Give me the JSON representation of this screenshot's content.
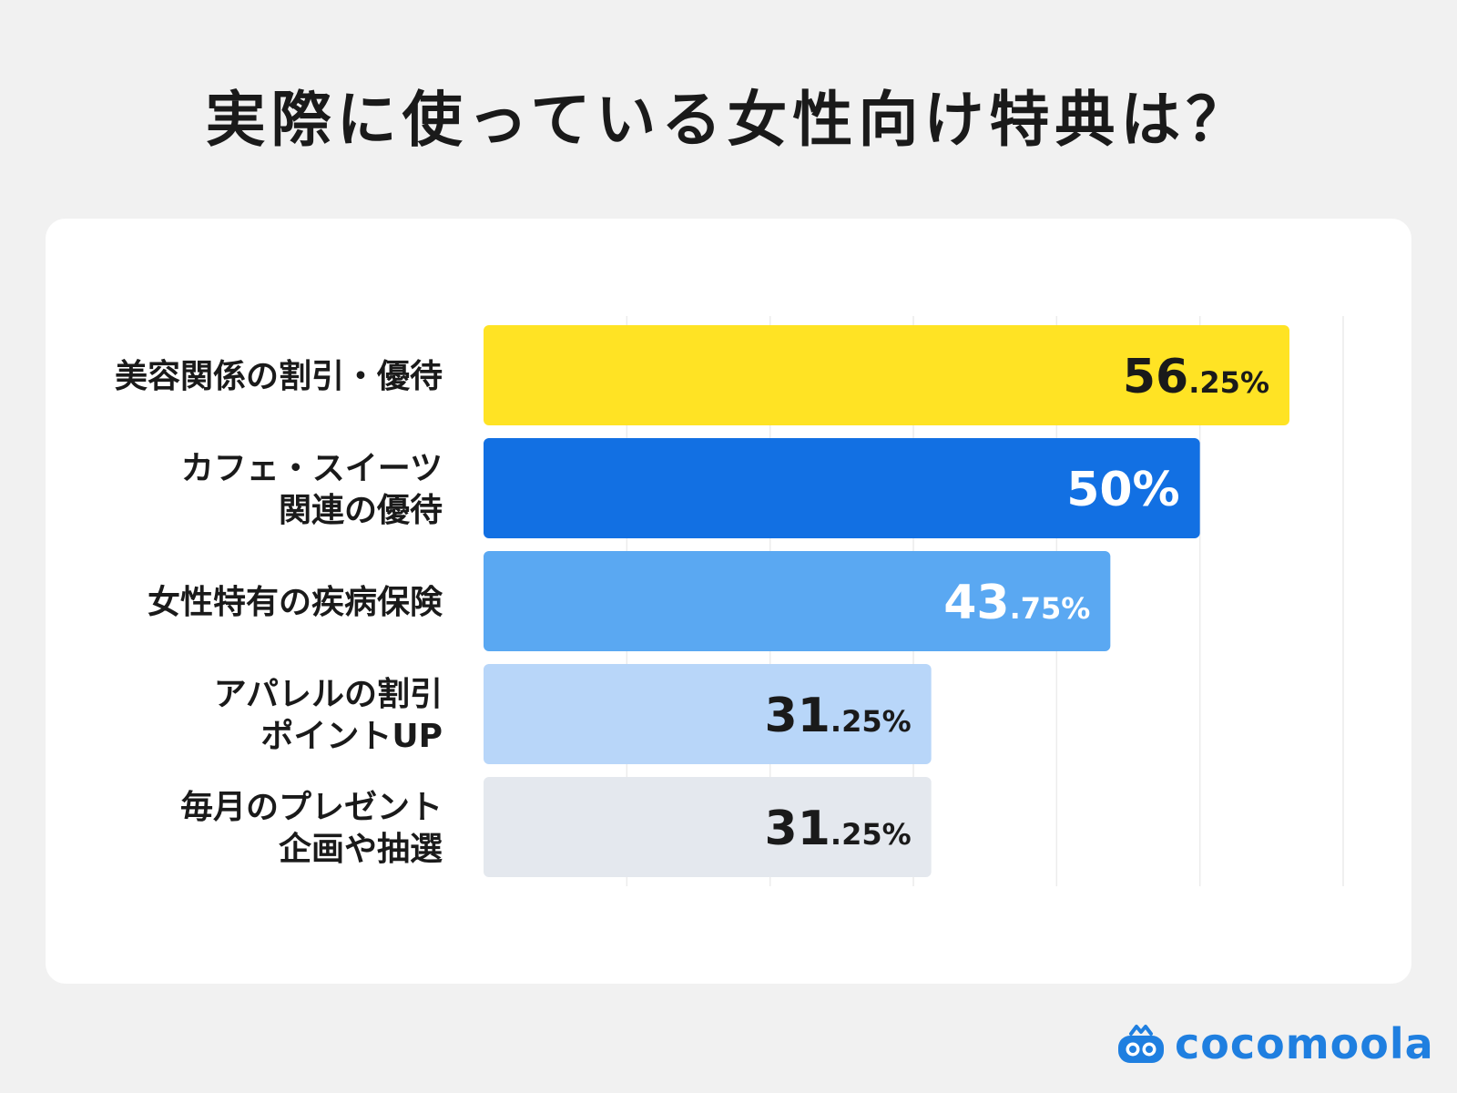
{
  "title": "実際に使っている女性向け特典は？",
  "logo": {
    "text": "cocomoola",
    "icon": "cocomoola-logo-icon"
  },
  "chart_data": {
    "type": "bar",
    "orientation": "horizontal",
    "title": "実際に使っている女性向け特典は？",
    "categories": [
      [
        "美容関係の割引・優待"
      ],
      [
        "カフェ・スイーツ",
        "関連の優待"
      ],
      [
        "女性特有の疾病保険"
      ],
      [
        "アパレルの割引",
        "ポイントUP"
      ],
      [
        "毎月のプレゼント",
        "企画や抽選"
      ]
    ],
    "values": [
      56.25,
      50,
      43.75,
      31.25,
      31.25
    ],
    "value_labels": [
      {
        "int": "56",
        "dec": ".25%"
      },
      {
        "int": "50%",
        "dec": ""
      },
      {
        "int": "43",
        "dec": ".75%"
      },
      {
        "int": "31",
        "dec": ".25%"
      },
      {
        "int": "31",
        "dec": ".25%"
      }
    ],
    "colors": [
      "#ffe324",
      "#1270e3",
      "#5aa8f2",
      "#b8d6f9",
      "#e4e8ee"
    ],
    "label_colors": [
      "#1a1a1a",
      "#ffffff",
      "#ffffff",
      "#1a1a1a",
      "#1a1a1a"
    ],
    "xlim": [
      0,
      60
    ],
    "grid": true
  }
}
